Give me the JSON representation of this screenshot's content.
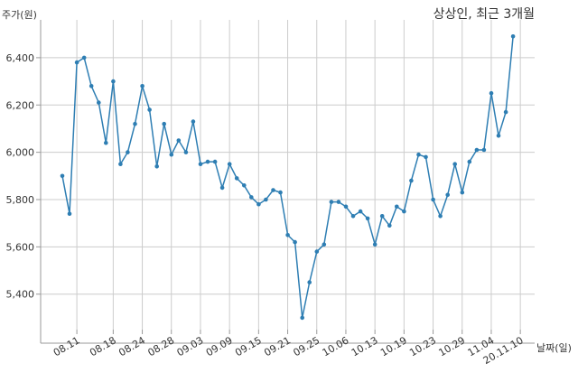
{
  "chart_data": {
    "type": "line",
    "title": "상상인, 최근 3개월",
    "xlabel": "날짜(일)",
    "ylabel": "주가(원)",
    "ylim": [
      5250,
      6560
    ],
    "yticks": [
      5400,
      5600,
      5800,
      6000,
      6200,
      6400
    ],
    "ytick_labels": [
      "5,400",
      "5,600",
      "5,800",
      "6,000",
      "6,200",
      "6,400"
    ],
    "xtick_labels": [
      "08.11",
      "08.18",
      "08.24",
      "08.28",
      "09.03",
      "09.09",
      "09.15",
      "09.21",
      "09.25",
      "10.06",
      "10.13",
      "10.19",
      "10.23",
      "10.29",
      "11.04",
      "20.11.10"
    ],
    "xtick_index": [
      2,
      7,
      11,
      15,
      19,
      23,
      27,
      31,
      35,
      39,
      43,
      47,
      51,
      55,
      59,
      63
    ],
    "grid": true,
    "series": [
      {
        "color": "#2e7eb3",
        "values": [
          5900,
          5740,
          6380,
          6400,
          6280,
          6210,
          6040,
          6300,
          5950,
          6000,
          6120,
          6280,
          6180,
          5940,
          6120,
          5990,
          6050,
          6000,
          6130,
          5950,
          5960,
          5960,
          5850,
          5950,
          5890,
          5860,
          5810,
          5780,
          5800,
          5840,
          5830,
          5650,
          5620,
          5300,
          5450,
          5580,
          5610,
          5790,
          5790,
          5770,
          5730,
          5750,
          5720,
          5610,
          5730,
          5690,
          5770,
          5750,
          5880,
          5990,
          5980,
          5800,
          5730,
          5820,
          5950,
          5830,
          5960,
          6010,
          6010,
          6250,
          6070,
          6170,
          6490
        ]
      }
    ]
  }
}
